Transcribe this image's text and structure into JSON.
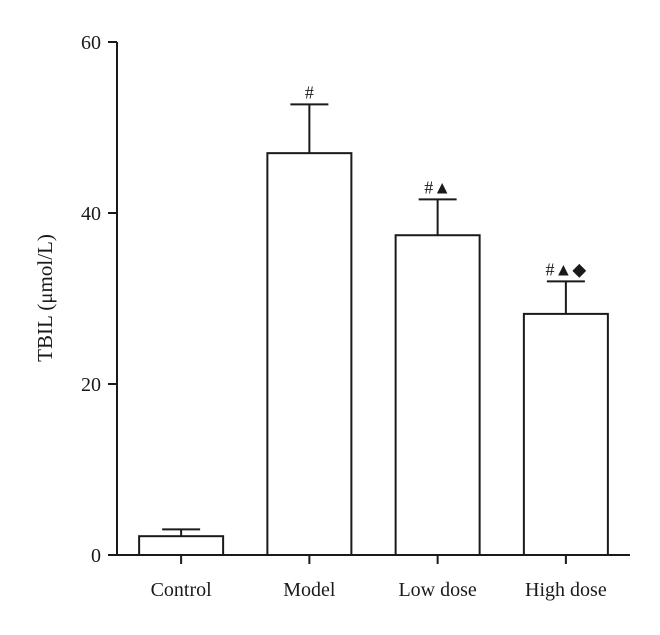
{
  "chart_data": {
    "type": "bar",
    "title": "",
    "xlabel": "",
    "ylabel": "TBIL (μmol/L)",
    "ylim": [
      0,
      60
    ],
    "yticks": [
      0,
      20,
      40,
      60
    ],
    "grid": false,
    "categories": [
      "Control",
      "Model",
      "Low dose",
      "High dose"
    ],
    "values": [
      2.2,
      47.0,
      37.4,
      28.2
    ],
    "errors": [
      0.8,
      5.7,
      4.2,
      3.8
    ],
    "annotations": [
      "",
      "#",
      "#▲",
      "#▲◆"
    ],
    "bar_fill": "#ffffff",
    "bar_stroke": "#1a1a1a"
  }
}
